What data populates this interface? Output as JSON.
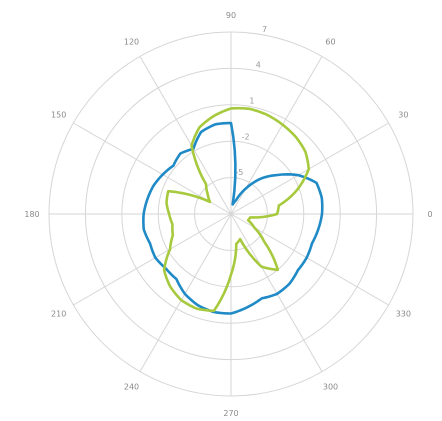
{
  "chart_data": {
    "type": "line",
    "subtype": "polar",
    "title": "",
    "angular_axis": {
      "ticks": [
        0,
        30,
        60,
        90,
        120,
        150,
        180,
        210,
        240,
        270,
        300,
        330
      ],
      "tick_labels": [
        "0",
        "30",
        "60",
        "90",
        "120",
        "150",
        "180",
        "210",
        "240",
        "270",
        "300",
        "330"
      ],
      "direction": "counterclockwise",
      "rotation": 0
    },
    "radial_axis": {
      "range": [
        -8,
        7
      ],
      "ticks": [
        -8,
        -5,
        -2,
        1,
        4,
        7
      ],
      "tick_labels": [
        "",
        "-5",
        "-2",
        "1",
        "4",
        "7"
      ],
      "tick_label_angle": 80
    },
    "grid": true,
    "legend": "none",
    "series": [
      {
        "color": "#1f8ac6",
        "theta": [
          0,
          10,
          20,
          30,
          40,
          50,
          60,
          70,
          80,
          90,
          100,
          110,
          120,
          130,
          140,
          150,
          160,
          170,
          180,
          190,
          200,
          210,
          220,
          230,
          240,
          250,
          260,
          270,
          280,
          290,
          300,
          310,
          320,
          330,
          340,
          350,
          360
        ],
        "r": [
          -0.5,
          -0.4,
          -0.5,
          -1.6,
          -3.0,
          -4.2,
          -5.6,
          -6.8,
          -7.2,
          -0.5,
          -0.5,
          -0.8,
          -1.8,
          -1.5,
          -1.8,
          -1.5,
          -1.2,
          -1.0,
          -0.8,
          -0.7,
          -0.9,
          -0.8,
          -1.0,
          -1.0,
          -0.4,
          0.0,
          0.2,
          0.2,
          -0.2,
          -0.6,
          -0.4,
          -0.5,
          -0.8,
          -0.8,
          -0.9,
          -0.7,
          -0.5
        ]
      },
      {
        "color": "#a7c93d",
        "theta": [
          0,
          10,
          20,
          30,
          40,
          50,
          60,
          70,
          80,
          90,
          100,
          110,
          120,
          130,
          140,
          150,
          160,
          170,
          180,
          190,
          200,
          210,
          220,
          230,
          240,
          250,
          260,
          270,
          280,
          290,
          300,
          310,
          320,
          330,
          340,
          350,
          360
        ],
        "r": [
          -4.2,
          -4.0,
          -2.2,
          -0.6,
          0.0,
          0.3,
          0.5,
          0.7,
          0.8,
          0.7,
          0.2,
          -0.4,
          -1.5,
          -4.8,
          -5.5,
          -6.0,
          -2.5,
          -2.6,
          -2.9,
          -3.1,
          -2.9,
          -2.2,
          -0.8,
          -0.2,
          0.2,
          0.3,
          0.1,
          -3.0,
          -5.5,
          -5.8,
          -3.0,
          -2.0,
          -4.4,
          -5.8,
          -6.5,
          -6.4,
          -4.2
        ]
      }
    ]
  }
}
